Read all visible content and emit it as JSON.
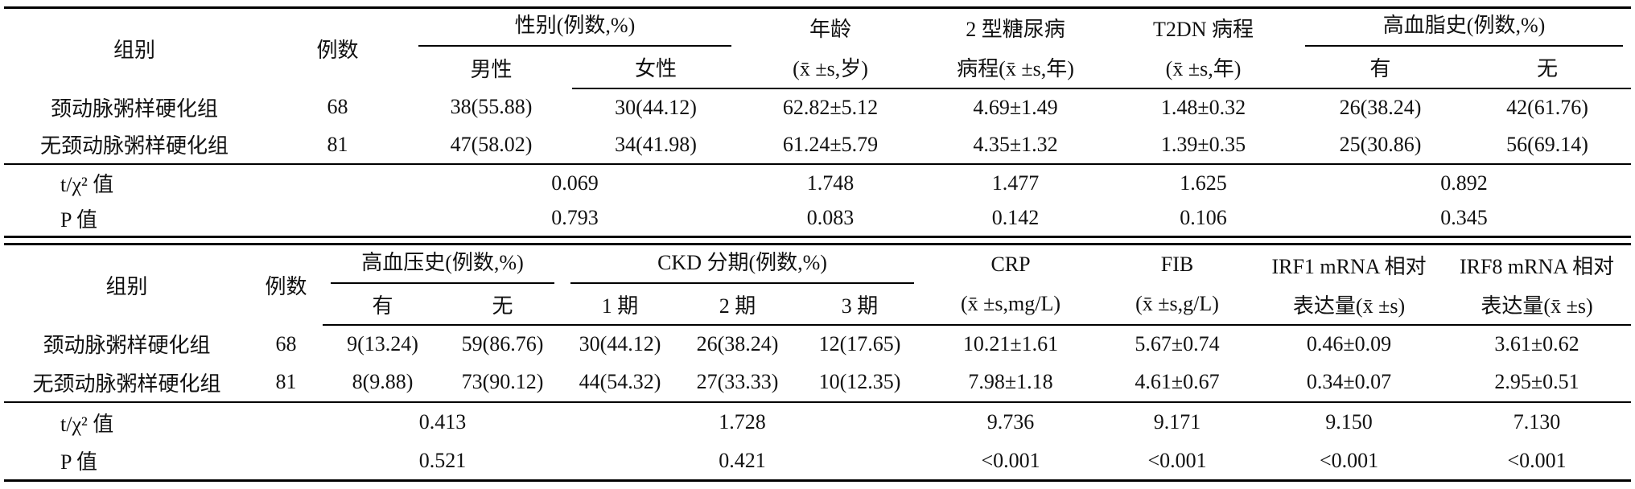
{
  "table1": {
    "header": [
      [
        "组别",
        "例数",
        "性别(例数,%)",
        "年龄",
        "2 型糖尿病",
        "T2DN 病程",
        "高血脂史(例数,%)"
      ],
      [
        "男性",
        "女性",
        "(x̄ ±s,岁)",
        "病程(x̄ ±s,年)",
        "(x̄ ±s,年)",
        "有",
        "无"
      ]
    ],
    "rows": [
      [
        "颈动脉粥样硬化组",
        "68",
        "38(55.88)",
        "30(44.12)",
        "62.82±5.12",
        "4.69±1.49",
        "1.48±0.32",
        "26(38.24)",
        "42(61.76)"
      ],
      [
        "无颈动脉粥样硬化组",
        "81",
        "47(58.02)",
        "34(41.98)",
        "61.24±5.79",
        "4.35±1.32",
        "1.39±0.35",
        "25(30.86)",
        "56(69.14)"
      ]
    ],
    "stats": [
      [
        "t/χ² 值",
        "0.069",
        "1.748",
        "1.477",
        "1.625",
        "0.892"
      ],
      [
        "P 值",
        "0.793",
        "0.083",
        "0.142",
        "0.106",
        "0.345"
      ]
    ]
  },
  "table2": {
    "header": [
      [
        "组别",
        "例数",
        "高血压史(例数,%)",
        "CKD 分期(例数,%)",
        "CRP",
        "FIB",
        "IRF1 mRNA 相对",
        "IRF8 mRNA 相对"
      ],
      [
        "有",
        "无",
        "1 期",
        "2 期",
        "3 期",
        "(x̄ ±s,mg/L)",
        "(x̄ ±s,g/L)",
        "表达量(x̄ ±s)",
        "表达量(x̄ ±s)"
      ]
    ],
    "rows": [
      [
        "颈动脉粥样硬化组",
        "68",
        "9(13.24)",
        "59(86.76)",
        "30(44.12)",
        "26(38.24)",
        "12(17.65)",
        "10.21±1.61",
        "5.67±0.74",
        "0.46±0.09",
        "3.61±0.62"
      ],
      [
        "无颈动脉粥样硬化组",
        "81",
        "8(9.88)",
        "73(90.12)",
        "44(54.32)",
        "27(33.33)",
        "10(12.35)",
        "7.98±1.18",
        "4.61±0.67",
        "0.34±0.07",
        "2.95±0.51"
      ]
    ],
    "stats": [
      [
        "t/χ² 值",
        "0.413",
        "1.728",
        "9.736",
        "9.171",
        "9.150",
        "7.130"
      ],
      [
        "P 值",
        "0.521",
        "0.421",
        "<0.001",
        "<0.001",
        "<0.001",
        "<0.001"
      ]
    ]
  }
}
